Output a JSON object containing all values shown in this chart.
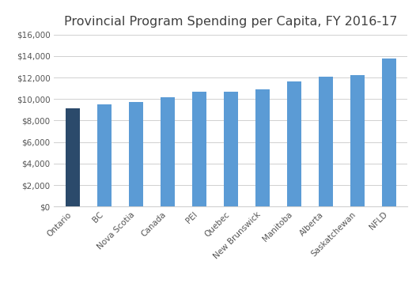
{
  "title": "Provincial Program Spending per Capita, FY 2016-17",
  "categories": [
    "Ontario",
    "BC",
    "Nova Scotia",
    "Canada",
    "PEI",
    "Quebec",
    "New Brunswick",
    "Manitoba",
    "Alberta",
    "Saskatchewan",
    "NFLD"
  ],
  "values": [
    9100,
    9500,
    9700,
    10200,
    10700,
    10700,
    10900,
    11600,
    12100,
    12200,
    13800
  ],
  "bar_colors": [
    "#2b4a6b",
    "#5b9bd5",
    "#5b9bd5",
    "#5b9bd5",
    "#5b9bd5",
    "#5b9bd5",
    "#5b9bd5",
    "#5b9bd5",
    "#5b9bd5",
    "#5b9bd5",
    "#5b9bd5"
  ],
  "ylim": [
    0,
    16000
  ],
  "yticks": [
    0,
    2000,
    4000,
    6000,
    8000,
    10000,
    12000,
    14000,
    16000
  ],
  "background_color": "#ffffff",
  "title_fontsize": 11.5,
  "tick_fontsize": 7.5,
  "grid_color": "#d0d0d0",
  "bar_width": 0.45
}
